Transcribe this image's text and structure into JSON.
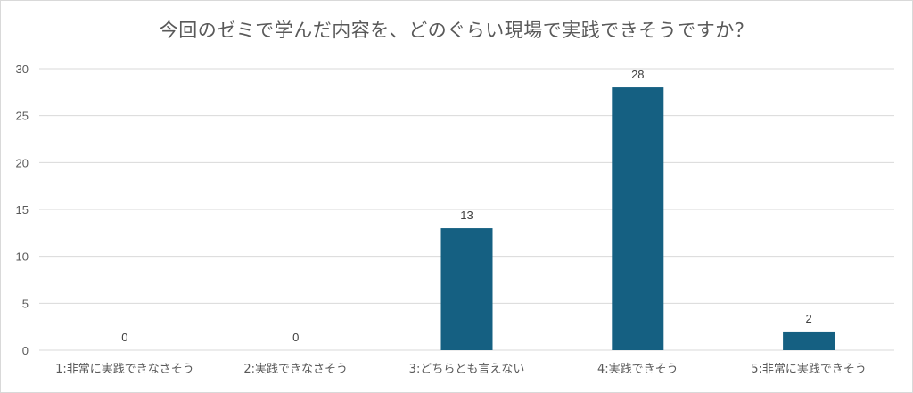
{
  "chart_data": {
    "type": "bar",
    "title": "今回のゼミで学んだ内容を、どのぐらい現場で実践できそうですか？",
    "categories": [
      "1:非常に実践できなさそう",
      "2:実践できなさそう",
      "3:どちらとも言えない",
      "4:実践できそう",
      "5:非常に実践できそう"
    ],
    "values": [
      0,
      0,
      13,
      28,
      2
    ],
    "ylim": [
      0,
      30
    ],
    "yticks": [
      0,
      5,
      10,
      15,
      20,
      25,
      30
    ],
    "grid": true,
    "legend": "none",
    "bar_color": "#156082",
    "grid_color": "#d9d9d9",
    "text_color": "#595959"
  }
}
